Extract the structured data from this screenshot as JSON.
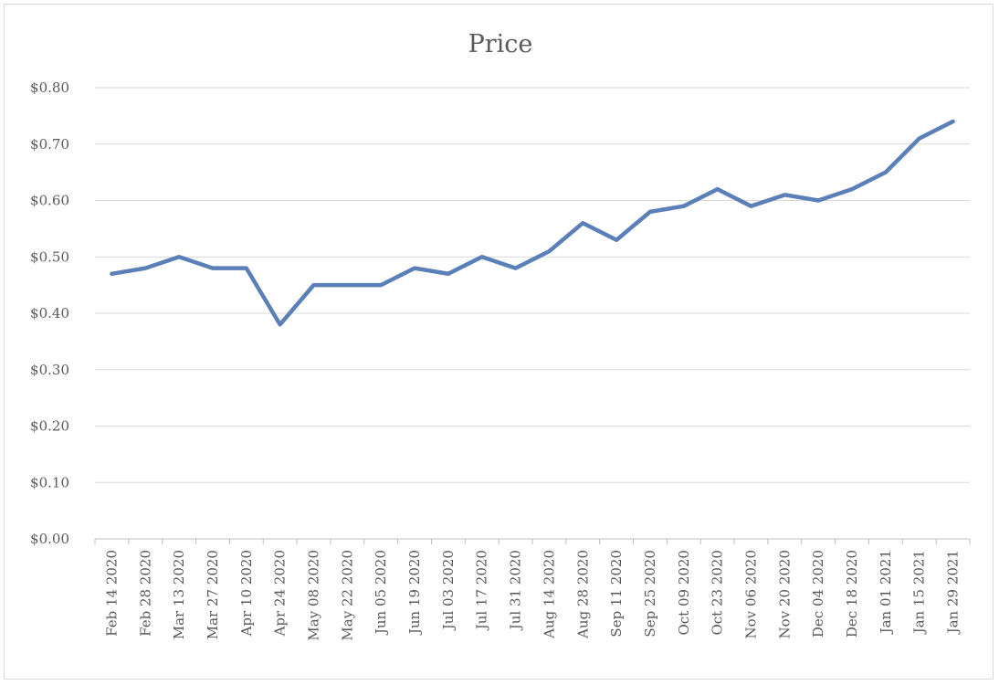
{
  "chart_data": {
    "type": "line",
    "title": "Price",
    "xlabel": "",
    "ylabel": "",
    "ylim": [
      0,
      0.8
    ],
    "yticks": [
      0,
      0.1,
      0.2,
      0.3,
      0.4,
      0.5,
      0.6,
      0.7,
      0.8
    ],
    "ytick_labels": [
      "$0.00",
      "$0.10",
      "$0.20",
      "$0.30",
      "$0.40",
      "$0.50",
      "$0.60",
      "$0.70",
      "$0.80"
    ],
    "grid": true,
    "legend": "none",
    "categories": [
      "Feb 14 2020",
      "Feb 28 2020",
      "Mar 13 2020",
      "Mar 27 2020",
      "Apr 10 2020",
      "Apr 24 2020",
      "May 08 2020",
      "May 22 2020",
      "Jun 05 2020",
      "Jun 19 2020",
      "Jul 03 2020",
      "Jul 17 2020",
      "Jul 31 2020",
      "Aug 14 2020",
      "Aug 28 2020",
      "Sep 11 2020",
      "Sep 25 2020",
      "Oct 09 2020",
      "Oct 23 2020",
      "Nov 06 2020",
      "Nov 20 2020",
      "Dec 04 2020",
      "Dec 18 2020",
      "Jan 01 2021",
      "Jan 15 2021",
      "Jan 29 2021"
    ],
    "series": [
      {
        "color": "#5b7fb8",
        "values": [
          0.47,
          0.48,
          0.5,
          0.48,
          0.48,
          0.38,
          0.45,
          0.45,
          0.45,
          0.48,
          0.47,
          0.5,
          0.48,
          0.51,
          0.56,
          0.53,
          0.58,
          0.59,
          0.62,
          0.59,
          0.61,
          0.6,
          0.62,
          0.65,
          0.71,
          0.74
        ]
      }
    ]
  }
}
